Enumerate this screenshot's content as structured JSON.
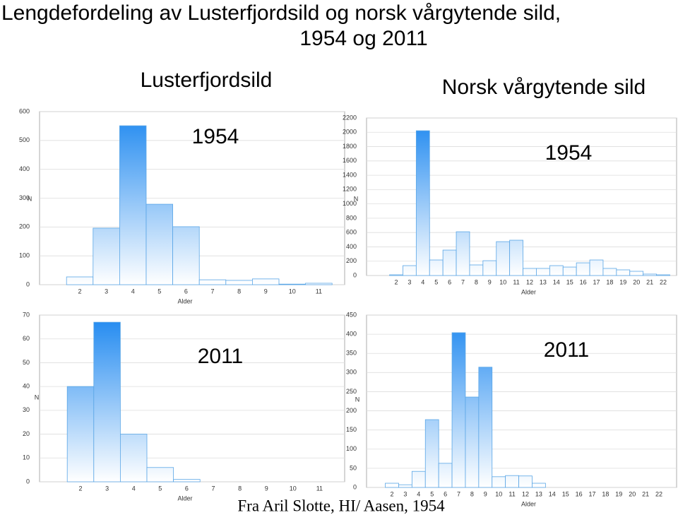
{
  "title_lines": [
    "Lengdefordeling av Lusterfjordsild og norsk vårgytende sild,",
    "1954 og 2011"
  ],
  "group_titles": [
    "Lusterfjordsild",
    "Norsk vårgytende sild"
  ],
  "source": "Fra Aril Slotte, HI/ Aasen, 1954",
  "chart_data": [
    {
      "type": "bar",
      "title": "1954",
      "x_label": "Alder",
      "y_label": "N",
      "color": "#1e88f0",
      "grid": true,
      "categories": [
        "2",
        "3",
        "4",
        "5",
        "6",
        "7",
        "8",
        "9",
        "10",
        "11"
      ],
      "values": [
        27,
        196,
        551,
        279,
        201,
        17,
        15,
        20,
        2,
        5
      ],
      "ylim": [
        0,
        600
      ],
      "yticks": [
        0,
        100,
        200,
        300,
        400,
        500,
        600
      ]
    },
    {
      "type": "bar",
      "title": "1954",
      "x_label": "Alder",
      "y_label": "N",
      "color": "#1e88f0",
      "grid": true,
      "categories": [
        "2",
        "3",
        "4",
        "5",
        "6",
        "7",
        "8",
        "9",
        "10",
        "11",
        "12",
        "13",
        "14",
        "15",
        "16",
        "17",
        "18",
        "19",
        "20",
        "21",
        "22"
      ],
      "values": [
        10,
        138,
        2022,
        217,
        355,
        611,
        148,
        207,
        473,
        493,
        99,
        99,
        138,
        118,
        177,
        217,
        99,
        79,
        59,
        20,
        10
      ],
      "ylim": [
        0,
        2200
      ],
      "yticks": [
        0,
        200,
        400,
        600,
        800,
        1000,
        1200,
        1400,
        1600,
        1800,
        2000,
        2200
      ]
    },
    {
      "type": "bar",
      "title": "2011",
      "x_label": "Alder",
      "y_label": "N",
      "color": "#1e88f0",
      "grid": true,
      "categories": [
        "2",
        "3",
        "4",
        "5",
        "6",
        "7",
        "8",
        "9",
        "10",
        "11"
      ],
      "values": [
        40,
        67,
        20,
        6,
        1,
        0,
        0,
        0,
        0,
        0
      ],
      "ylim": [
        0,
        70
      ],
      "yticks": [
        0,
        10,
        20,
        30,
        40,
        50,
        60,
        70
      ]
    },
    {
      "type": "bar",
      "title": "2011",
      "x_label": "Alder",
      "y_label": "N",
      "color": "#1e88f0",
      "grid": true,
      "categories": [
        "2",
        "3",
        "4",
        "5",
        "6",
        "7",
        "8",
        "9",
        "10",
        "11",
        "12",
        "13",
        "14",
        "15",
        "16",
        "17",
        "18",
        "19",
        "20",
        "21",
        "22"
      ],
      "values": [
        11,
        7,
        42,
        177,
        63,
        404,
        236,
        314,
        28,
        31,
        30,
        11,
        0,
        0,
        0,
        0,
        0,
        0,
        0,
        0,
        0
      ],
      "ylim": [
        0,
        450
      ],
      "yticks": [
        0,
        50,
        100,
        150,
        200,
        250,
        300,
        350,
        400,
        450
      ]
    }
  ]
}
